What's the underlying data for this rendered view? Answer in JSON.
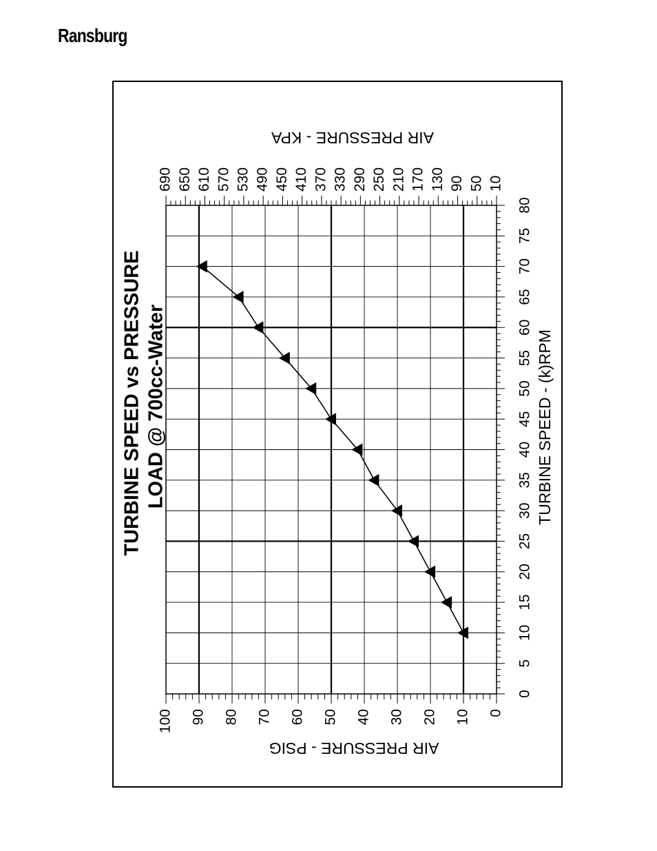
{
  "header": {
    "brand": "Ransburg"
  },
  "chart_data": {
    "type": "line",
    "title": "TURBINE SPEED vs PRESSURE",
    "subtitle": "LOAD @ 700cc-Water",
    "xlabel": "TURBINE SPEED - (k)RPM",
    "ylabel": "AIR PRESSURE - PSIG",
    "y2label": "AIR PRESSURE - KPA",
    "xlim": [
      0,
      80
    ],
    "ylim": [
      0,
      100
    ],
    "x_ticks": [
      "0",
      "5",
      "10",
      "15",
      "20",
      "25",
      "30",
      "35",
      "40",
      "45",
      "50",
      "55",
      "60",
      "65",
      "70",
      "75",
      "80"
    ],
    "y_ticks": [
      "0",
      "10",
      "20",
      "30",
      "40",
      "50",
      "60",
      "70",
      "80",
      "90",
      "100"
    ],
    "y2_ticks": [
      "10",
      "50",
      "90",
      "130",
      "170",
      "210",
      "250",
      "290",
      "330",
      "370",
      "410",
      "450",
      "490",
      "530",
      "570",
      "610",
      "650",
      "690"
    ],
    "grid": true,
    "orientation": "rotated 90 degrees counter-clockwise",
    "series": [
      {
        "marker": "triangle",
        "x": [
          10,
          15,
          20,
          25,
          30,
          35,
          40,
          45,
          50,
          55,
          60,
          65,
          70
        ],
        "y": [
          10,
          15,
          20,
          25,
          30,
          37,
          42,
          50,
          56,
          64,
          72,
          78,
          89
        ]
      }
    ]
  }
}
